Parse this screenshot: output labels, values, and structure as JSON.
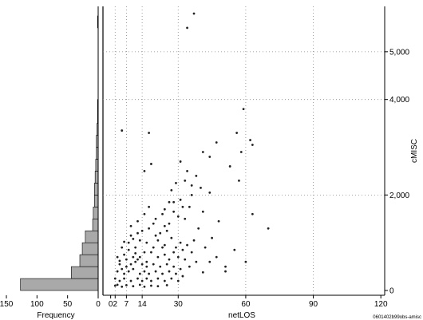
{
  "chart_data": [
    {
      "type": "bar",
      "orientation": "horizontal",
      "xlabel": "Frequency",
      "x_reversed": true,
      "xlim": [
        0,
        150
      ],
      "x_ticks": [
        "150",
        "100",
        "50",
        "0"
      ],
      "x_tick_values": [
        150,
        100,
        50,
        0
      ],
      "bin_width_y": 250,
      "bins": [
        {
          "y0": 0,
          "count": 127
        },
        {
          "y0": 250,
          "count": 44
        },
        {
          "y0": 500,
          "count": 30
        },
        {
          "y0": 750,
          "count": 26
        },
        {
          "y0": 1000,
          "count": 21
        },
        {
          "y0": 1250,
          "count": 9
        },
        {
          "y0": 1500,
          "count": 8
        },
        {
          "y0": 1750,
          "count": 6
        },
        {
          "y0": 2000,
          "count": 6
        },
        {
          "y0": 2250,
          "count": 5
        },
        {
          "y0": 2500,
          "count": 4
        },
        {
          "y0": 2750,
          "count": 3
        },
        {
          "y0": 3000,
          "count": 3
        },
        {
          "y0": 3250,
          "count": 2
        },
        {
          "y0": 3500,
          "count": 1
        },
        {
          "y0": 3750,
          "count": 1
        },
        {
          "y0": 4000,
          "count": 0
        },
        {
          "y0": 4250,
          "count": 0
        },
        {
          "y0": 4500,
          "count": 0
        },
        {
          "y0": 4750,
          "count": 0
        },
        {
          "y0": 5000,
          "count": 0
        },
        {
          "y0": 5250,
          "count": 0
        },
        {
          "y0": 5500,
          "count": 1
        }
      ],
      "fill_color": "#a9a9a9"
    },
    {
      "type": "scatter",
      "xlabel": "netLOS",
      "ylabel": "cMISC",
      "xlim": [
        -2,
        121
      ],
      "ylim": [
        -100,
        5950
      ],
      "x_ticks": [
        "0",
        "2",
        "7",
        "14",
        "30",
        "60",
        "90",
        "120"
      ],
      "x_tick_values": [
        0,
        2,
        7,
        14,
        30,
        60,
        90,
        120
      ],
      "y_ticks": [
        "0",
        "2,000",
        "4,000",
        "5,000"
      ],
      "y_tick_values": [
        0,
        2000,
        4000,
        5000
      ],
      "grid": true,
      "vertical_gridlines_at": [
        2,
        7,
        14,
        30,
        60,
        90
      ],
      "horizontal_gridlines_at": [
        2000,
        4000,
        5000
      ],
      "point_color": "#222222",
      "points": [
        [
          37,
          5800
        ],
        [
          34,
          5500
        ],
        [
          5,
          3350
        ],
        [
          59,
          3800
        ],
        [
          62,
          3150
        ],
        [
          63,
          3050
        ],
        [
          17,
          3300
        ],
        [
          47,
          3100
        ],
        [
          56,
          3300
        ],
        [
          58,
          2900
        ],
        [
          41,
          2900
        ],
        [
          53,
          2600
        ],
        [
          44,
          2800
        ],
        [
          31,
          2700
        ],
        [
          34,
          2500
        ],
        [
          33,
          2300
        ],
        [
          36,
          2200
        ],
        [
          38,
          2400
        ],
        [
          40,
          2150
        ],
        [
          29,
          2250
        ],
        [
          27,
          2100
        ],
        [
          18,
          2650
        ],
        [
          15,
          2500
        ],
        [
          57,
          2300
        ],
        [
          44,
          2050
        ],
        [
          36,
          2000
        ],
        [
          31,
          1900
        ],
        [
          35,
          1750
        ],
        [
          28,
          1850
        ],
        [
          24,
          1700
        ],
        [
          23,
          1600
        ],
        [
          20,
          1500
        ],
        [
          26,
          1400
        ],
        [
          30,
          1550
        ],
        [
          33,
          1500
        ],
        [
          41,
          1650
        ],
        [
          48,
          1450
        ],
        [
          63,
          1600
        ],
        [
          70,
          1300
        ],
        [
          39,
          1300
        ],
        [
          45,
          1100
        ],
        [
          55,
          850
        ],
        [
          17,
          1300
        ],
        [
          14,
          1250
        ],
        [
          12,
          1200
        ],
        [
          9,
          1150
        ],
        [
          13,
          1050
        ],
        [
          21,
          1050
        ],
        [
          16,
          1000
        ],
        [
          24,
          950
        ],
        [
          27,
          1100
        ],
        [
          29,
          900
        ],
        [
          31,
          1000
        ],
        [
          34,
          950
        ],
        [
          37,
          1050
        ],
        [
          19,
          900
        ],
        [
          11,
          900
        ],
        [
          8,
          850
        ],
        [
          5,
          900
        ],
        [
          6,
          750
        ],
        [
          10,
          700
        ],
        [
          12,
          650
        ],
        [
          15,
          800
        ],
        [
          18,
          800
        ],
        [
          21,
          700
        ],
        [
          24,
          750
        ],
        [
          26,
          650
        ],
        [
          30,
          700
        ],
        [
          33,
          650
        ],
        [
          38,
          600
        ],
        [
          44,
          600
        ],
        [
          60,
          600
        ],
        [
          4,
          550
        ],
        [
          7,
          500
        ],
        [
          9,
          550
        ],
        [
          11,
          600
        ],
        [
          14,
          550
        ],
        [
          16,
          500
        ],
        [
          19,
          550
        ],
        [
          22,
          500
        ],
        [
          25,
          550
        ],
        [
          28,
          500
        ],
        [
          31,
          450
        ],
        [
          35,
          500
        ],
        [
          3,
          400
        ],
        [
          6,
          350
        ],
        [
          8,
          400
        ],
        [
          10,
          450
        ],
        [
          13,
          350
        ],
        [
          15,
          400
        ],
        [
          17,
          350
        ],
        [
          20,
          400
        ],
        [
          23,
          350
        ],
        [
          26,
          400
        ],
        [
          29,
          350
        ],
        [
          32,
          300
        ],
        [
          41,
          380
        ],
        [
          51,
          400
        ],
        [
          2,
          250
        ],
        [
          4,
          200
        ],
        [
          6,
          250
        ],
        [
          9,
          200
        ],
        [
          12,
          250
        ],
        [
          14,
          200
        ],
        [
          16,
          250
        ],
        [
          18,
          200
        ],
        [
          21,
          250
        ],
        [
          24,
          200
        ],
        [
          27,
          250
        ],
        [
          30,
          200
        ],
        [
          2,
          100
        ],
        [
          3,
          120
        ],
        [
          5,
          80
        ],
        [
          7,
          110
        ],
        [
          10,
          90
        ],
        [
          13,
          120
        ],
        [
          15,
          80
        ],
        [
          18,
          100
        ],
        [
          21,
          90
        ],
        [
          25,
          110
        ],
        [
          8,
          1000
        ],
        [
          10,
          1080
        ],
        [
          6,
          1020
        ],
        [
          4,
          620
        ],
        [
          3,
          700
        ],
        [
          20,
          1150
        ],
        [
          22,
          1200
        ],
        [
          25,
          1250
        ],
        [
          26,
          1850
        ],
        [
          28,
          1650
        ],
        [
          32,
          1750
        ],
        [
          24,
          1350
        ],
        [
          19,
          1400
        ],
        [
          23,
          900
        ],
        [
          16,
          600
        ],
        [
          13,
          700
        ],
        [
          11,
          780
        ],
        [
          7,
          650
        ],
        [
          5,
          450
        ],
        [
          28,
          800
        ],
        [
          32,
          850
        ],
        [
          36,
          800
        ],
        [
          42,
          900
        ],
        [
          47,
          700
        ],
        [
          51,
          500
        ],
        [
          15,
          1600
        ],
        [
          12,
          1450
        ],
        [
          9,
          1350
        ],
        [
          17,
          1750
        ]
      ]
    }
  ],
  "footnote": "0601402b99obs-amisc"
}
